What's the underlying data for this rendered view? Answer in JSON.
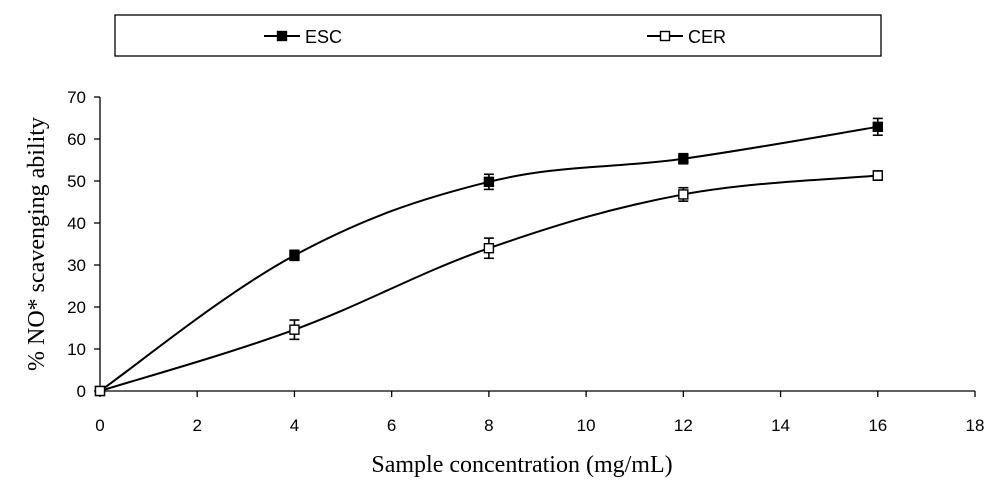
{
  "chart_data": {
    "type": "line",
    "xlabel": "Sample concentration (mg/mL)",
    "ylabel": "% NO* scavenging ability",
    "xlim": [
      0,
      18
    ],
    "ylim": [
      0,
      70
    ],
    "xticks": [
      "0",
      "2",
      "4",
      "6",
      "8",
      "10",
      "12",
      "14",
      "16",
      "18"
    ],
    "yticks": [
      "0",
      "10",
      "20",
      "30",
      "40",
      "50",
      "60",
      "70"
    ],
    "grid": false,
    "legend_position": "top",
    "series": [
      {
        "name": "ESC",
        "marker": "filled-square",
        "color": "#000000",
        "points": [
          {
            "x": 0,
            "y": 0,
            "err": 0
          },
          {
            "x": 4,
            "y": 32.3,
            "err": 1.2
          },
          {
            "x": 8,
            "y": 49.8,
            "err": 1.8
          },
          {
            "x": 12,
            "y": 55.3,
            "err": 1.2
          },
          {
            "x": 16,
            "y": 62.9,
            "err": 2.0
          }
        ]
      },
      {
        "name": "CER",
        "marker": "open-square",
        "color": "#000000",
        "points": [
          {
            "x": 0,
            "y": 0,
            "err": 0
          },
          {
            "x": 4,
            "y": 14.6,
            "err": 2.3
          },
          {
            "x": 8,
            "y": 34.0,
            "err": 2.4
          },
          {
            "x": 12,
            "y": 46.8,
            "err": 1.6
          },
          {
            "x": 16,
            "y": 51.3,
            "err": 1.1
          }
        ]
      }
    ]
  }
}
